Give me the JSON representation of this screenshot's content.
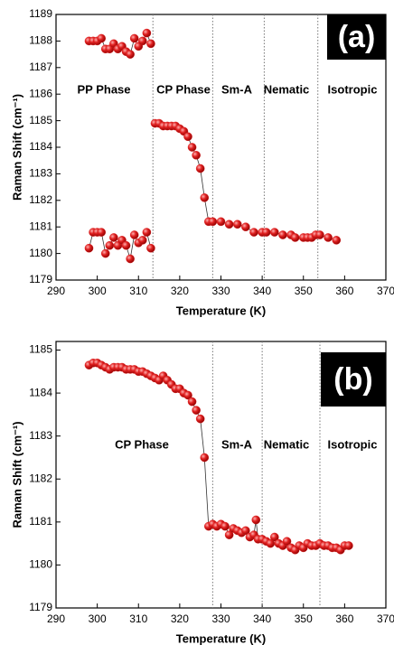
{
  "chart_data": [
    {
      "type": "scatter",
      "panel_label": "(a)",
      "x_label": "Temperature (K)",
      "y_label": "Raman Shift (cm⁻¹)",
      "xlim": [
        290,
        370
      ],
      "xticks": [
        290,
        300,
        310,
        320,
        330,
        340,
        350,
        360,
        370
      ],
      "ylim": [
        1179,
        1189
      ],
      "yticks": [
        1179,
        1180,
        1181,
        1182,
        1183,
        1184,
        1185,
        1186,
        1187,
        1188,
        1189
      ],
      "vlines": [
        313.5,
        328,
        340.5,
        353.5
      ],
      "annotations": [
        "PP Phase",
        "CP Phase",
        "Sm-A",
        "Nematic",
        "Isotropic"
      ],
      "series": [
        {
          "color": "#e02020",
          "x": [
            298,
            299,
            300,
            301,
            302,
            303,
            304,
            305,
            306,
            307,
            308,
            309,
            310,
            311,
            312,
            313
          ],
          "values": [
            1188.0,
            1188.0,
            1188.0,
            1188.1,
            1187.7,
            1187.7,
            1187.9,
            1187.7,
            1187.8,
            1187.6,
            1187.5,
            1188.1,
            1187.8,
            1188.0,
            1188.3,
            1187.9
          ]
        },
        {
          "color": "#e02020",
          "x": [
            298,
            299,
            300,
            301,
            302,
            303,
            304,
            305,
            306,
            307,
            308,
            309,
            310,
            311,
            312,
            313
          ],
          "values": [
            1180.2,
            1180.8,
            1180.8,
            1180.8,
            1180.0,
            1180.3,
            1180.6,
            1180.3,
            1180.5,
            1180.3,
            1179.8,
            1180.7,
            1180.4,
            1180.5,
            1180.8,
            1180.2
          ]
        },
        {
          "color": "#e02020",
          "x": [
            314,
            315,
            316,
            317,
            318,
            319,
            320,
            321,
            322,
            323,
            324,
            325,
            326,
            327,
            328,
            330,
            332,
            334,
            336,
            338,
            340,
            341,
            343,
            345,
            347,
            348,
            350,
            351,
            352,
            353,
            354,
            356,
            358
          ],
          "values": [
            1184.9,
            1184.9,
            1184.8,
            1184.8,
            1184.8,
            1184.8,
            1184.7,
            1184.6,
            1184.4,
            1184.0,
            1183.7,
            1183.2,
            1182.1,
            1181.2,
            1181.2,
            1181.2,
            1181.1,
            1181.1,
            1181.0,
            1180.8,
            1180.8,
            1180.8,
            1180.8,
            1180.7,
            1180.7,
            1180.6,
            1180.6,
            1180.6,
            1180.6,
            1180.7,
            1180.7,
            1180.6,
            1180.5
          ]
        }
      ]
    },
    {
      "type": "scatter",
      "panel_label": "(b)",
      "x_label": "Temperature (K)",
      "y_label": "Raman Shift (cm⁻¹)",
      "xlim": [
        290,
        370
      ],
      "xticks": [
        290,
        300,
        310,
        320,
        330,
        340,
        350,
        360,
        370
      ],
      "ylim": [
        1179,
        1185.2
      ],
      "yticks": [
        1179,
        1180,
        1181,
        1182,
        1183,
        1184,
        1185
      ],
      "vlines": [
        328,
        340,
        354
      ],
      "annotations": [
        "CP Phase",
        "Sm-A",
        "Nematic",
        "Isotropic"
      ],
      "series": [
        {
          "color": "#e02020",
          "x": [
            298,
            299,
            300,
            301,
            302,
            303,
            304,
            305,
            306,
            307,
            308,
            309,
            310,
            311,
            312,
            313,
            314,
            315,
            316,
            317,
            318,
            319,
            320,
            321,
            322,
            323,
            324,
            325,
            326,
            327,
            328,
            329,
            330,
            331,
            332,
            333,
            334,
            335,
            336,
            337,
            338,
            338.5,
            339,
            340,
            341,
            342,
            343,
            344,
            345,
            346,
            347,
            348,
            349,
            350,
            351,
            352,
            353,
            354,
            355,
            356,
            357,
            358,
            359,
            360,
            361
          ],
          "values": [
            1184.65,
            1184.7,
            1184.7,
            1184.65,
            1184.6,
            1184.55,
            1184.6,
            1184.6,
            1184.6,
            1184.55,
            1184.55,
            1184.55,
            1184.5,
            1184.5,
            1184.45,
            1184.4,
            1184.35,
            1184.3,
            1184.4,
            1184.3,
            1184.2,
            1184.1,
            1184.1,
            1184.0,
            1183.95,
            1183.8,
            1183.6,
            1183.4,
            1182.5,
            1180.9,
            1180.95,
            1180.9,
            1180.95,
            1180.9,
            1180.7,
            1180.85,
            1180.8,
            1180.75,
            1180.8,
            1180.65,
            1180.7,
            1181.05,
            1180.6,
            1180.6,
            1180.55,
            1180.5,
            1180.65,
            1180.5,
            1180.45,
            1180.55,
            1180.4,
            1180.35,
            1180.45,
            1180.4,
            1180.5,
            1180.45,
            1180.45,
            1180.5,
            1180.45,
            1180.45,
            1180.4,
            1180.4,
            1180.35,
            1180.45,
            1180.45
          ]
        }
      ]
    }
  ]
}
